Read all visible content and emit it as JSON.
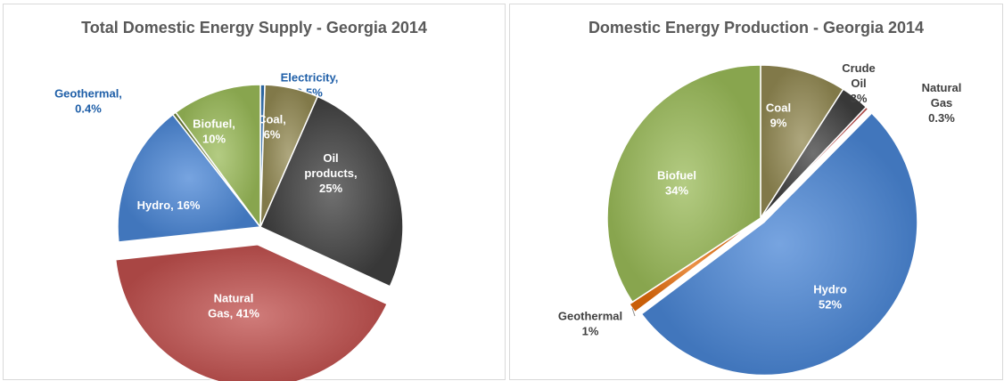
{
  "chart_data": [
    {
      "type": "pie",
      "title": "Total Domestic Energy Supply - Georgia 2014",
      "slices": [
        {
          "name": "Electricity",
          "value": 0.5,
          "label": [
            "Electricity,",
            "0.5%"
          ],
          "color": "#2f6fb0"
        },
        {
          "name": "Coal",
          "value": 6,
          "label": [
            "Coal,",
            "6%"
          ],
          "color": "#938953"
        },
        {
          "name": "Oil products",
          "value": 25,
          "label": [
            "Oil",
            "products,",
            "25%"
          ],
          "color": "#404040"
        },
        {
          "name": "Natural Gas",
          "value": 41,
          "label": [
            "Natural",
            "Gas, 41%"
          ],
          "color": "#c0504d"
        },
        {
          "name": "Hydro",
          "value": 16,
          "label": [
            "Hydro, 16%"
          ],
          "color": "#4a86d6"
        },
        {
          "name": "Geothermal",
          "value": 0.4,
          "label": [
            "Geothermal,",
            "0.4%"
          ],
          "color": "#6d7f3a"
        },
        {
          "name": "Biofuel",
          "value": 10,
          "label": [
            "Biofuel,",
            "10%"
          ],
          "color": "#9bbb59"
        }
      ]
    },
    {
      "type": "pie",
      "title": "Domestic Energy Production - Georgia 2014",
      "slices": [
        {
          "name": "Coal",
          "value": 9,
          "label": [
            "Coal",
            "9%"
          ],
          "color": "#938953"
        },
        {
          "name": "Crude Oil",
          "value": 3,
          "label": [
            "Crude",
            "Oil",
            "3%"
          ],
          "color": "#404040"
        },
        {
          "name": "Natural Gas",
          "value": 0.3,
          "label": [
            "Natural",
            "Gas",
            "0.3%"
          ],
          "color": "#c0504d"
        },
        {
          "name": "Hydro",
          "value": 52,
          "label": [
            "Hydro",
            "52%"
          ],
          "color": "#4a86d6"
        },
        {
          "name": "Geothermal",
          "value": 1,
          "label": [
            "Geothermal",
            "1%"
          ],
          "color": "#e46c0a"
        },
        {
          "name": "Biofuel",
          "value": 34,
          "label": [
            "Biofuel",
            "34%"
          ],
          "color": "#9bbb59"
        }
      ]
    }
  ]
}
